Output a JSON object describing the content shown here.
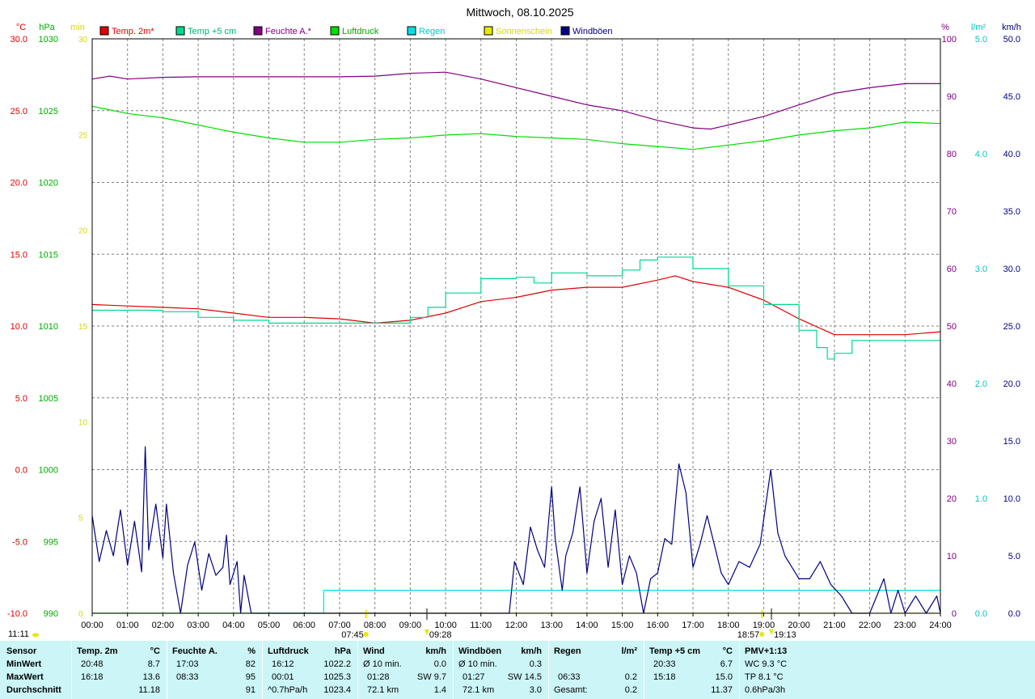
{
  "title": "Mittwoch, 08.10.2025",
  "colors": {
    "temp2m": "#e00000",
    "temp5cm": "#00d88c",
    "feuchte": "#800080",
    "luftdruck": "#00dd00",
    "regen": "#00e0e0",
    "sonnenschein": "#e8e800",
    "windboeen": "#00007f",
    "grid": "#808080"
  },
  "axes": {
    "temp_unit": "°C",
    "press_unit": "hPa",
    "sun_unit": "min",
    "hum_unit": "%",
    "rain_unit": "l/m²",
    "wind_unit": "km/h"
  },
  "chart_data": {
    "type": "line",
    "title": "Mittwoch, 08.10.2025",
    "x_range": [
      0,
      24
    ],
    "x_ticks": [
      "00:00",
      "01:00",
      "02:00",
      "03:00",
      "04:00",
      "05:00",
      "06:00",
      "07:00",
      "08:00",
      "09:00",
      "10:00",
      "11:00",
      "12:00",
      "13:00",
      "14:00",
      "15:00",
      "16:00",
      "17:00",
      "18:00",
      "19:00",
      "20:00",
      "21:00",
      "22:00",
      "23:00",
      "24:00"
    ],
    "y_axes": {
      "temperature": {
        "unit": "°C",
        "range": [
          -10,
          30
        ],
        "ticks": [
          "30.0",
          "25.0",
          "20.0",
          "15.0",
          "10.0",
          "5.0",
          "0.0",
          "-5.0",
          "-10.0"
        ]
      },
      "pressure": {
        "unit": "hPa",
        "range": [
          990,
          1030
        ],
        "ticks": [
          "1030",
          "1025",
          "1020",
          "1015",
          "1010",
          "1005",
          "1000",
          "995",
          "990"
        ]
      },
      "sunshine": {
        "unit": "min",
        "range": [
          0,
          30
        ],
        "ticks": [
          "30",
          "25",
          "20",
          "15",
          "10",
          "5",
          "0"
        ]
      },
      "humidity": {
        "unit": "%",
        "range": [
          0,
          100
        ],
        "ticks": [
          "100",
          "90",
          "80",
          "70",
          "60",
          "50",
          "40",
          "30",
          "20",
          "10",
          "0"
        ]
      },
      "rain": {
        "unit": "l/m²",
        "range": [
          0,
          5
        ],
        "ticks": [
          "5.0",
          "4.0",
          "3.0",
          "2.0",
          "1.0",
          "0.0"
        ]
      },
      "wind": {
        "unit": "km/h",
        "range": [
          0,
          50
        ],
        "ticks": [
          "50.0",
          "45.0",
          "40.0",
          "35.0",
          "30.0",
          "25.0",
          "20.0",
          "15.0",
          "10.0",
          "5.0",
          "0.0"
        ]
      }
    },
    "series": [
      {
        "name": "Temp. 2m*",
        "axis": "temperature",
        "points": [
          [
            0,
            11.5
          ],
          [
            1,
            11.4
          ],
          [
            2,
            11.3
          ],
          [
            3,
            11.2
          ],
          [
            4,
            10.9
          ],
          [
            5,
            10.6
          ],
          [
            6,
            10.6
          ],
          [
            7,
            10.5
          ],
          [
            8,
            10.2
          ],
          [
            9,
            10.4
          ],
          [
            10,
            10.9
          ],
          [
            11,
            11.7
          ],
          [
            12,
            12.0
          ],
          [
            13,
            12.5
          ],
          [
            14,
            12.7
          ],
          [
            15,
            12.7
          ],
          [
            16,
            13.2
          ],
          [
            16.5,
            13.5
          ],
          [
            17,
            13.1
          ],
          [
            18,
            12.7
          ],
          [
            19,
            11.8
          ],
          [
            20,
            10.5
          ],
          [
            21,
            9.4
          ],
          [
            22,
            9.4
          ],
          [
            23,
            9.4
          ],
          [
            24,
            9.6
          ]
        ]
      },
      {
        "name": "Temp +5 cm",
        "axis": "temperature",
        "points": [
          [
            0,
            11.1
          ],
          [
            1,
            11.1
          ],
          [
            2,
            11.0
          ],
          [
            3,
            10.6
          ],
          [
            4,
            10.4
          ],
          [
            5,
            10.2
          ],
          [
            6,
            10.2
          ],
          [
            7,
            10.2
          ],
          [
            8,
            10.2
          ],
          [
            9,
            10.6
          ],
          [
            9.5,
            11.3
          ],
          [
            10,
            12.3
          ],
          [
            11,
            13.3
          ],
          [
            12,
            13.4
          ],
          [
            12.5,
            13.0
          ],
          [
            13,
            13.7
          ],
          [
            14,
            13.5
          ],
          [
            15,
            13.9
          ],
          [
            15.5,
            14.6
          ],
          [
            16,
            14.8
          ],
          [
            17,
            14.0
          ],
          [
            18,
            12.8
          ],
          [
            19,
            11.5
          ],
          [
            20,
            9.7
          ],
          [
            20.5,
            8.5
          ],
          [
            20.8,
            7.7
          ],
          [
            21,
            8.1
          ],
          [
            21.5,
            9.0
          ],
          [
            22,
            9.0
          ],
          [
            23,
            9.0
          ],
          [
            24,
            9.0
          ]
        ]
      },
      {
        "name": "Feuchte A.*",
        "axis": "humidity",
        "points": [
          [
            0,
            93
          ],
          [
            0.5,
            93.5
          ],
          [
            1,
            93
          ],
          [
            2,
            93.3
          ],
          [
            3,
            93.4
          ],
          [
            5,
            93.4
          ],
          [
            7,
            93.4
          ],
          [
            8,
            93.5
          ],
          [
            9,
            94
          ],
          [
            10,
            94.2
          ],
          [
            11,
            93
          ],
          [
            12,
            91.5
          ],
          [
            13,
            90
          ],
          [
            14,
            88.5
          ],
          [
            15,
            87.5
          ],
          [
            16,
            85.8
          ],
          [
            17,
            84.5
          ],
          [
            17.5,
            84.3
          ],
          [
            18,
            85
          ],
          [
            19,
            86.5
          ],
          [
            20,
            88.5
          ],
          [
            21,
            90.5
          ],
          [
            22,
            91.5
          ],
          [
            23,
            92.2
          ],
          [
            24,
            92.2
          ]
        ]
      },
      {
        "name": "Luftdruck",
        "axis": "pressure",
        "points": [
          [
            0,
            1025.3
          ],
          [
            1,
            1024.8
          ],
          [
            2,
            1024.5
          ],
          [
            3,
            1024.0
          ],
          [
            4,
            1023.5
          ],
          [
            5,
            1023.1
          ],
          [
            6,
            1022.8
          ],
          [
            7,
            1022.8
          ],
          [
            8,
            1023.0
          ],
          [
            9,
            1023.1
          ],
          [
            10,
            1023.3
          ],
          [
            11,
            1023.4
          ],
          [
            12,
            1023.2
          ],
          [
            13,
            1023.1
          ],
          [
            14,
            1023.0
          ],
          [
            15,
            1022.7
          ],
          [
            16,
            1022.5
          ],
          [
            17,
            1022.3
          ],
          [
            18,
            1022.6
          ],
          [
            19,
            1022.9
          ],
          [
            20,
            1023.3
          ],
          [
            21,
            1023.6
          ],
          [
            22,
            1023.8
          ],
          [
            23,
            1024.2
          ],
          [
            24,
            1024.1
          ]
        ]
      },
      {
        "name": "Regen",
        "axis": "rain",
        "points": [
          [
            0,
            0
          ],
          [
            6.55,
            0
          ],
          [
            6.55,
            0.2
          ],
          [
            24,
            0.2
          ]
        ]
      },
      {
        "name": "Sonnenschein",
        "axis": "sunshine",
        "points": [
          [
            0,
            0
          ],
          [
            24,
            0
          ]
        ]
      },
      {
        "name": "Windböen",
        "axis": "wind",
        "points": [
          [
            0,
            8.5
          ],
          [
            0.2,
            4.5
          ],
          [
            0.4,
            7.2
          ],
          [
            0.6,
            5.0
          ],
          [
            0.8,
            9.0
          ],
          [
            1.0,
            4.2
          ],
          [
            1.2,
            8.0
          ],
          [
            1.4,
            3.6
          ],
          [
            1.5,
            14.5
          ],
          [
            1.6,
            5.5
          ],
          [
            1.8,
            9.5
          ],
          [
            2.0,
            4.8
          ],
          [
            2.1,
            9.5
          ],
          [
            2.3,
            3.5
          ],
          [
            2.5,
            0
          ],
          [
            2.7,
            4.2
          ],
          [
            2.9,
            6.2
          ],
          [
            3.1,
            2.0
          ],
          [
            3.3,
            5.2
          ],
          [
            3.5,
            3.3
          ],
          [
            3.7,
            4.0
          ],
          [
            3.8,
            6.8
          ],
          [
            3.9,
            2.5
          ],
          [
            4.1,
            4.5
          ],
          [
            4.2,
            0
          ],
          [
            4.3,
            3.3
          ],
          [
            4.5,
            0
          ],
          [
            11.8,
            0
          ],
          [
            11.95,
            4.5
          ],
          [
            12.2,
            2.5
          ],
          [
            12.4,
            7.5
          ],
          [
            12.6,
            5.5
          ],
          [
            12.8,
            4.0
          ],
          [
            13.0,
            11.0
          ],
          [
            13.1,
            6.5
          ],
          [
            13.3,
            2.0
          ],
          [
            13.4,
            5.0
          ],
          [
            13.6,
            7.0
          ],
          [
            13.8,
            11.0
          ],
          [
            14.0,
            3.5
          ],
          [
            14.2,
            8.0
          ],
          [
            14.4,
            10.0
          ],
          [
            14.6,
            4.0
          ],
          [
            14.8,
            9.0
          ],
          [
            15.0,
            2.5
          ],
          [
            15.2,
            5.0
          ],
          [
            15.4,
            3.5
          ],
          [
            15.6,
            0
          ],
          [
            15.8,
            3.0
          ],
          [
            16.0,
            3.5
          ],
          [
            16.2,
            6.5
          ],
          [
            16.4,
            6.0
          ],
          [
            16.6,
            13.0
          ],
          [
            16.8,
            10.5
          ],
          [
            17.0,
            4.0
          ],
          [
            17.2,
            6.0
          ],
          [
            17.4,
            8.5
          ],
          [
            17.6,
            6.0
          ],
          [
            17.8,
            3.5
          ],
          [
            18.0,
            2.5
          ],
          [
            18.3,
            4.5
          ],
          [
            18.6,
            4.0
          ],
          [
            18.9,
            6.0
          ],
          [
            19.2,
            12.5
          ],
          [
            19.4,
            7.0
          ],
          [
            19.6,
            5.0
          ],
          [
            19.8,
            4.0
          ],
          [
            20.0,
            3.0
          ],
          [
            20.3,
            3.0
          ],
          [
            20.6,
            4.5
          ],
          [
            20.9,
            2.5
          ],
          [
            21.2,
            1.5
          ],
          [
            21.5,
            0
          ],
          [
            22.0,
            0
          ],
          [
            22.4,
            3.0
          ],
          [
            22.6,
            0
          ],
          [
            22.8,
            2.0
          ],
          [
            23.0,
            0
          ],
          [
            23.3,
            1.5
          ],
          [
            23.6,
            0
          ],
          [
            23.9,
            1.5
          ],
          [
            24,
            0
          ]
        ]
      }
    ],
    "sun_events": [
      {
        "label": "07:45",
        "x": 7.75
      },
      {
        "label": "18:57",
        "x": 18.95
      }
    ],
    "day_events": [
      {
        "label": "09:28",
        "x": 9.47
      },
      {
        "label": "19:13",
        "x": 19.22
      }
    ],
    "bottom_left": "11:11"
  },
  "legend": [
    {
      "label": "Temp. 2m*",
      "color": "#e00000",
      "text_color": "#e00000"
    },
    {
      "label": "Temp +5 cm",
      "color": "#00d88c",
      "text_color": "#00b070"
    },
    {
      "label": "Feuchte A.*",
      "color": "#800080",
      "text_color": "#800080"
    },
    {
      "label": "Luftdruck",
      "color": "#00dd00",
      "text_color": "#00aa00"
    },
    {
      "label": "Regen",
      "color": "#00e0e0",
      "text_color": "#00c8c8"
    },
    {
      "label": "Sonnenschein",
      "color": "#e8e800",
      "text_color": "#d8d800"
    },
    {
      "label": "Windböen",
      "color": "#00007f",
      "text_color": "#00007f"
    }
  ],
  "table": {
    "row_labels": [
      "Sensor",
      "MinWert",
      "MaxWert",
      "Durchschnitt"
    ],
    "temp2m": {
      "header": "Temp. 2m",
      "unit": "°C",
      "min_time": "20:48",
      "min_val": "8.7",
      "max_time": "16:18",
      "max_val": "13.6",
      "avg_val": "11.18"
    },
    "feuchte": {
      "header": "Feuchte A.",
      "unit": "%",
      "min_time": "17:03",
      "min_val": "82",
      "max_time": "08:33",
      "max_val": "95",
      "avg_val": "91"
    },
    "luftdruck": {
      "header": "Luftdruck",
      "unit": "hPa",
      "min_time": "16:12",
      "min_val": "1022.2",
      "max_time": "00:01",
      "max_val": "1025.3",
      "avg_time": "^0.7hPa/h",
      "avg_val": "1023.4"
    },
    "wind": {
      "header": "Wind",
      "unit": "km/h",
      "min_time": "Ø 10 min.",
      "min_val": "0.0",
      "max_time": "01:28",
      "max_dir": "SW 9.7",
      "avg_time": "72.1 km",
      "avg_val": "1.4"
    },
    "windboeen": {
      "header": "Windböen",
      "unit": "km/h",
      "min_time": "Ø 10 min.",
      "min_val": "0.3",
      "max_time": "01:27",
      "max_dir": "SW 14.5",
      "avg_time": "72.1 km",
      "avg_val": "3.0"
    },
    "regen": {
      "header": "Regen",
      "unit": "l/m²",
      "max_time": "06:33",
      "max_val": "0.2",
      "avg_time": "Gesamt:",
      "avg_val": "0.2"
    },
    "temp5cm": {
      "header": "Temp +5 cm",
      "unit": "°C",
      "min_time": "20:33",
      "min_val": "6.7",
      "max_time": "15:18",
      "max_val": "15.0",
      "avg_val": "11.37"
    },
    "pmv": {
      "header": "PMV+1:13",
      "line1": "WC 9.3 °C",
      "line2": "TP 8.1 °C",
      "line3": "0.6hPa/3h"
    }
  }
}
